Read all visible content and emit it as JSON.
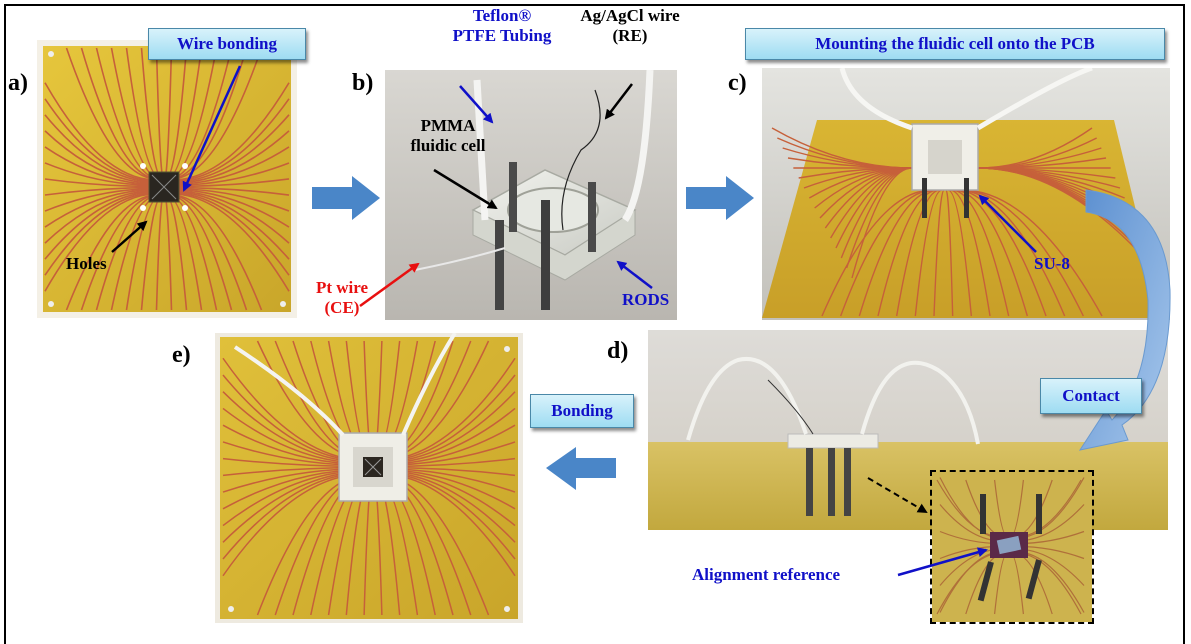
{
  "panels": {
    "a": "a)",
    "b": "b)",
    "c": "c)",
    "d": "d)",
    "e": "e)"
  },
  "callouts": {
    "wire_bonding": "Wire bonding",
    "mounting": "Mounting the fluidic cell onto the PCB",
    "contact": "Contact",
    "bonding": "Bonding"
  },
  "annotations": {
    "holes": "Holes",
    "teflon_line1": "Teflon®",
    "teflon_line2": "PTFE Tubing",
    "agagcl_line1": "Ag/AgCl  wire",
    "agagcl_line2": "(RE)",
    "pmma_line1": "PMMA",
    "pmma_line2": "fluidic cell",
    "pt_line1": "Pt wire",
    "pt_line2": "(CE)",
    "rods": "RODS",
    "su8": "SU-8",
    "alignment": "Alignment reference"
  },
  "colors": {
    "pcb": "#d8b832",
    "trace": "#c6603a",
    "flow_arrow": "#4a86c8",
    "label_blue": "#1010c8",
    "label_red": "#e81010"
  }
}
